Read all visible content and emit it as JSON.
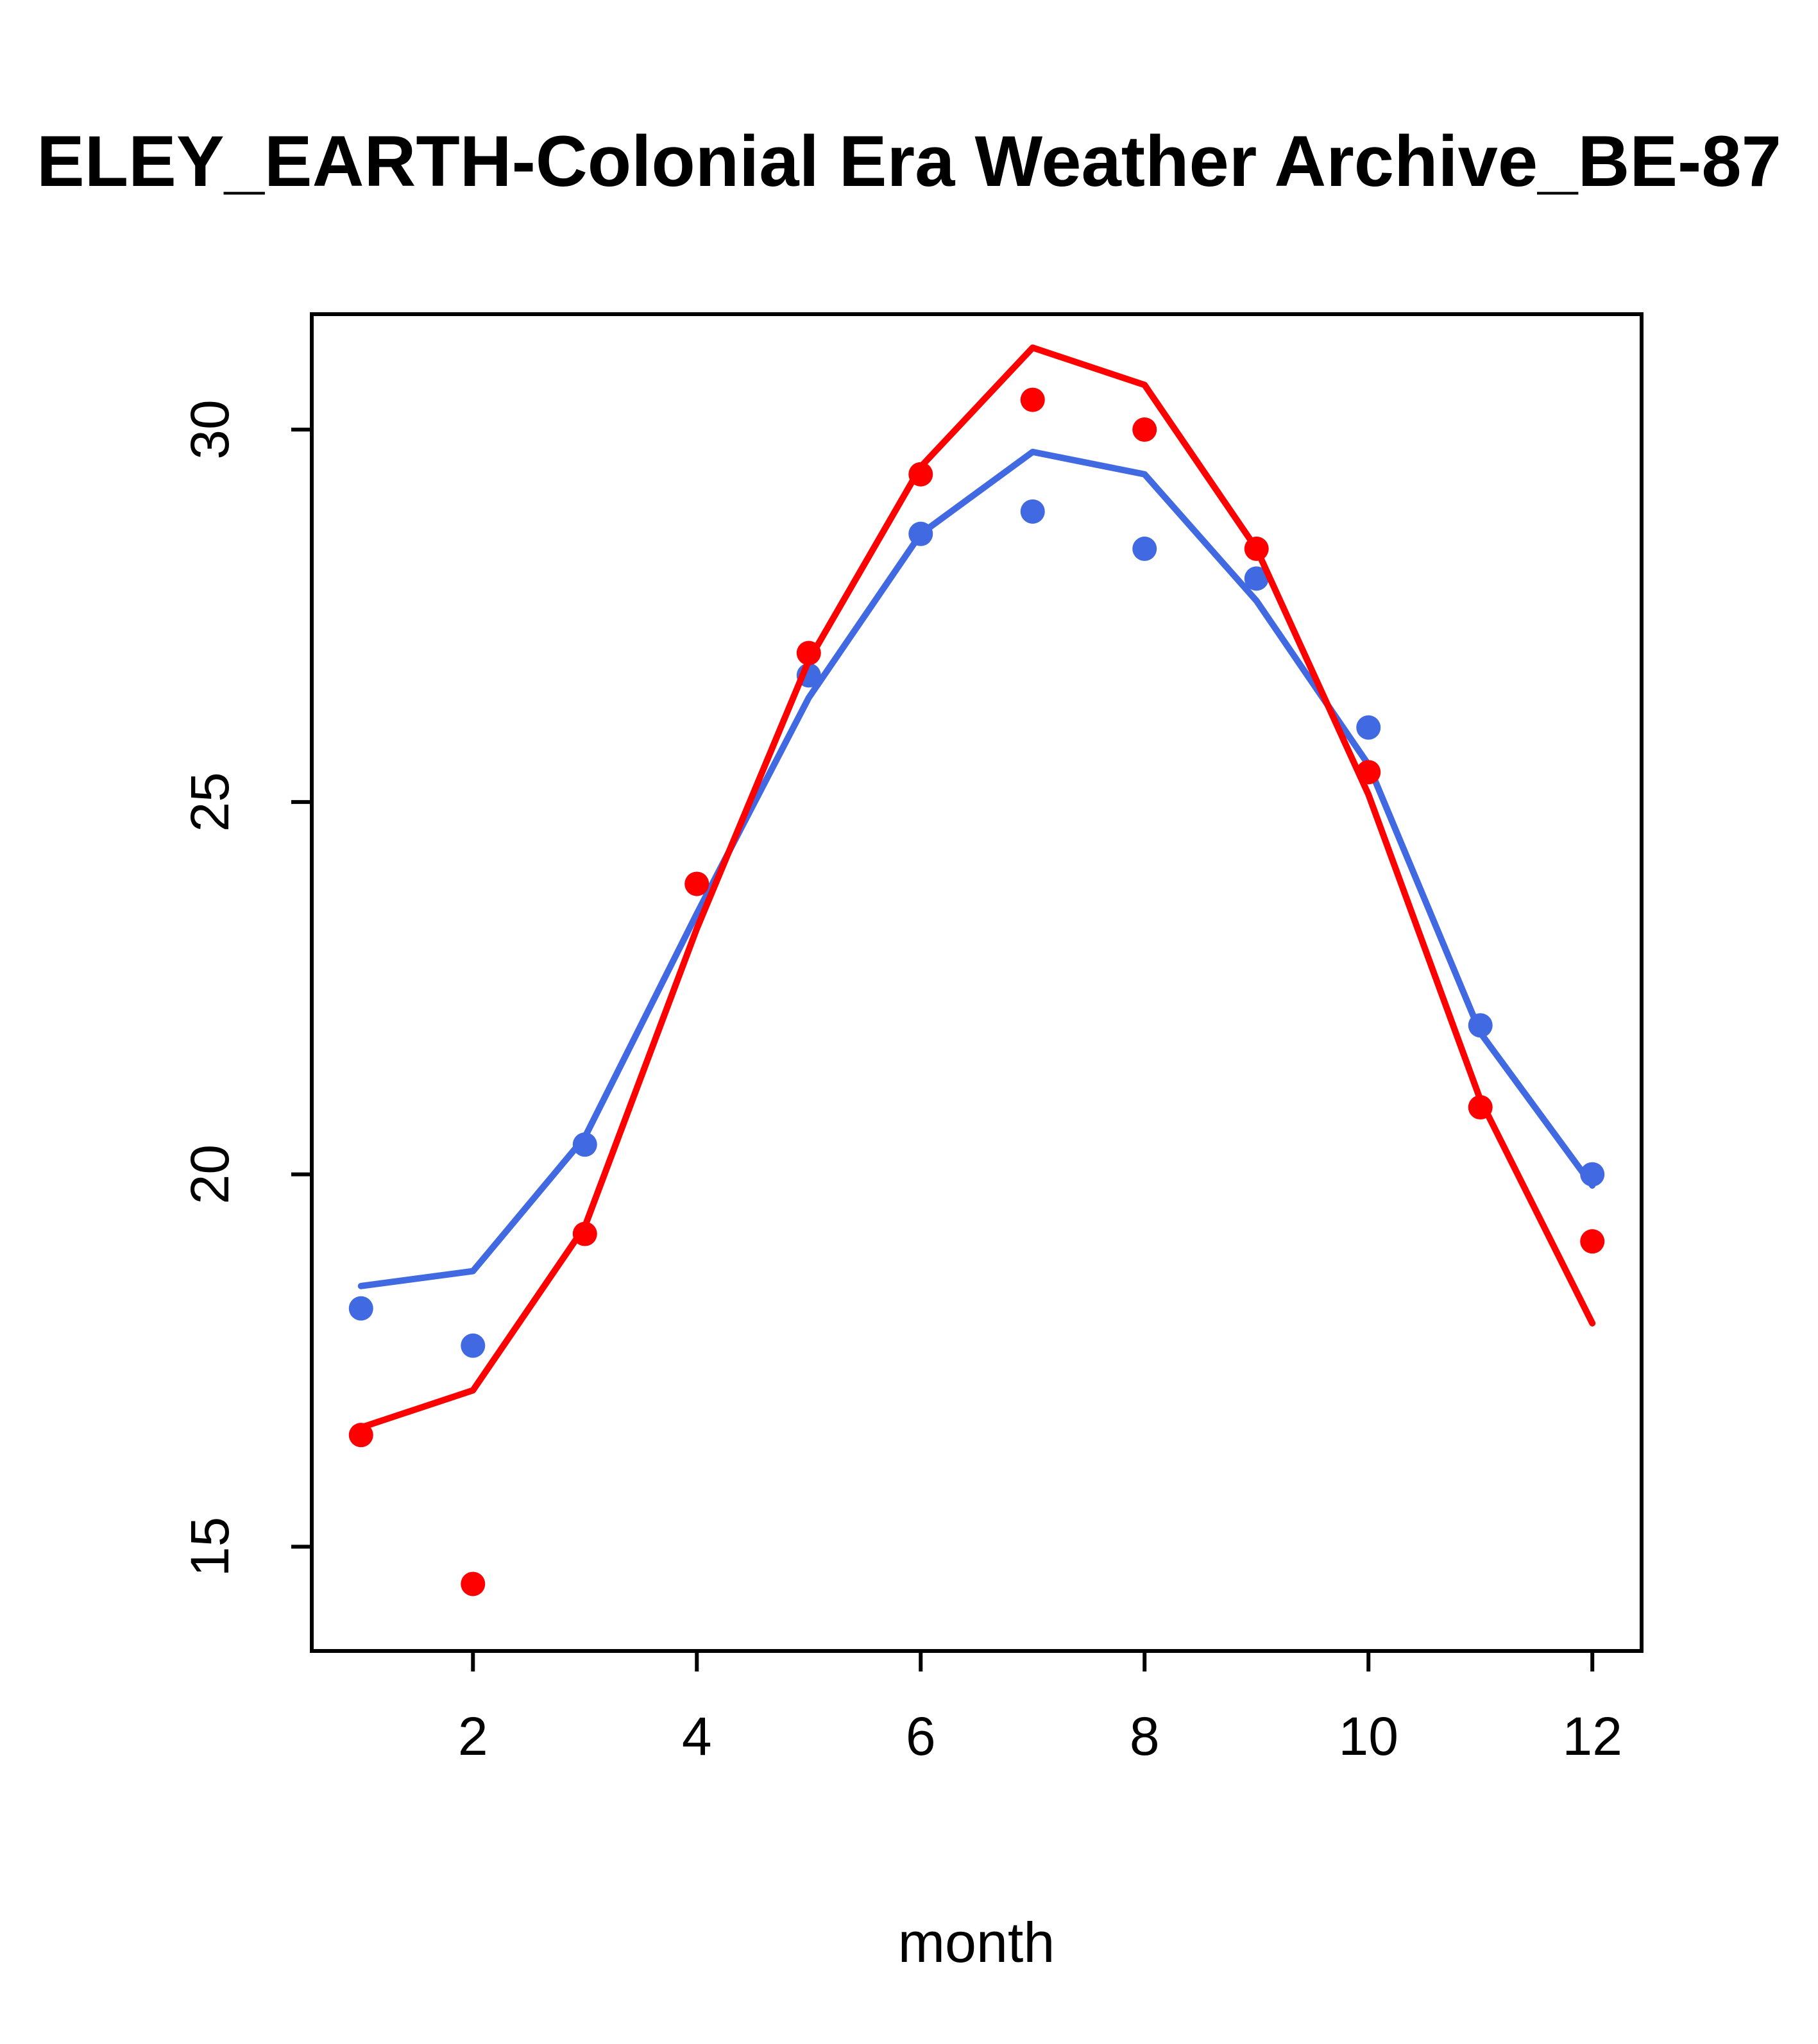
{
  "page": {
    "background": "#FFFFFF"
  },
  "chart_data": {
    "type": "line",
    "title": "ELEY_EARTH-Colonial Era Weather Archive_BE-87",
    "title_truncated": true,
    "xlabel": "month",
    "ylabel": "",
    "x": [
      1,
      2,
      3,
      4,
      5,
      6,
      7,
      8,
      9,
      10,
      11,
      12
    ],
    "xticks": [
      2,
      4,
      6,
      8,
      10,
      12
    ],
    "yticks": [
      15,
      20,
      25,
      30
    ],
    "xlim": [
      0.56,
      12.44
    ],
    "ylim": [
      13.6,
      31.55
    ],
    "grid": false,
    "legend": null,
    "colors": {
      "red": "#FF0000",
      "blue": "#4169E1",
      "axis": "#000000",
      "background": "#FFFFFF"
    },
    "series": [
      {
        "name": "blue-line",
        "kind": "line",
        "color": "#4169E1",
        "values": [
          18.5,
          18.7,
          20.5,
          23.5,
          26.4,
          28.6,
          29.7,
          29.4,
          27.7,
          25.5,
          21.9,
          19.85
        ]
      },
      {
        "name": "blue-points",
        "kind": "points",
        "color": "#4169E1",
        "values": [
          18.2,
          17.7,
          20.4,
          23.9,
          26.7,
          28.6,
          28.9,
          28.4,
          28.0,
          26.0,
          22.0,
          20.0
        ]
      },
      {
        "name": "red-line",
        "kind": "line",
        "color": "#FF0000",
        "values": [
          16.6,
          17.1,
          19.3,
          23.3,
          26.9,
          29.5,
          31.1,
          30.6,
          28.4,
          25.1,
          21.0,
          18.0
        ]
      },
      {
        "name": "red-points",
        "kind": "points",
        "color": "#FF0000",
        "values": [
          16.5,
          14.5,
          19.2,
          23.9,
          27.0,
          29.4,
          30.4,
          30.0,
          28.4,
          25.4,
          20.9,
          19.1
        ]
      }
    ]
  }
}
